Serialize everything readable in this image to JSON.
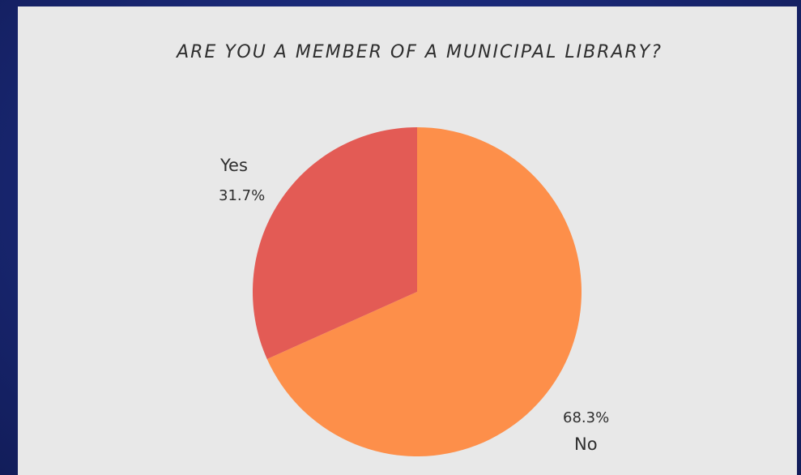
{
  "chart_data": {
    "type": "pie",
    "title": "ARE YOU A MEMBER OF A MUNICIPAL LIBRARY?",
    "categories": [
      "No",
      "Yes"
    ],
    "values": [
      68.3,
      31.7
    ],
    "value_labels": [
      "68.3%",
      "31.7%"
    ],
    "colors": [
      "#fd8f4a",
      "#e35b55"
    ],
    "legend": "none"
  }
}
